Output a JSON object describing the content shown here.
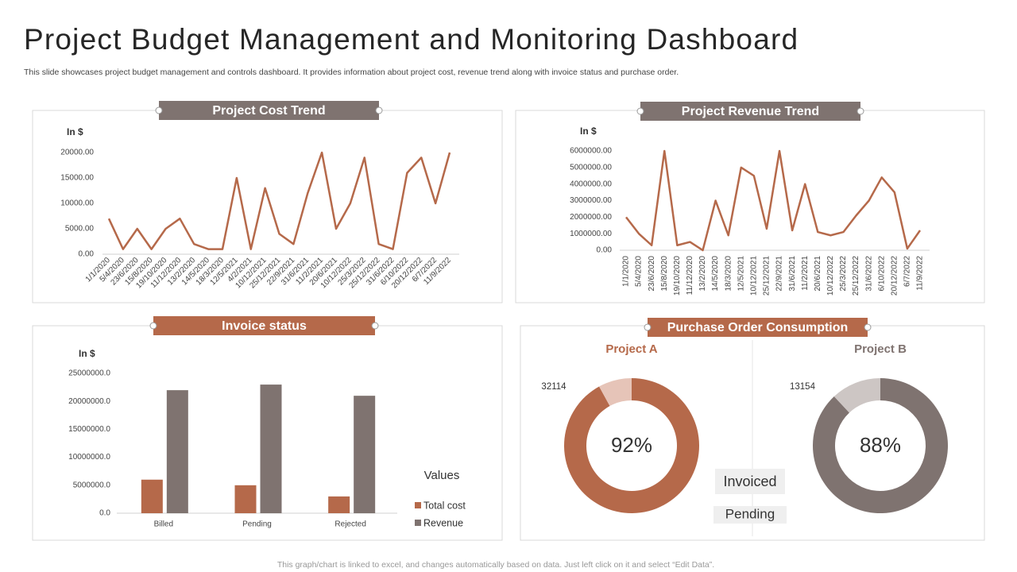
{
  "header": {
    "title": "Project Budget Management and Monitoring Dashboard",
    "subtitle": "This slide showcases project budget management and controls dashboard. It provides information about project cost, revenue trend along with invoice status and purchase order.",
    "footer": "This graph/chart is linked to excel, and changes automatically based on data. Just left click on it and select “Edit Data”."
  },
  "chart_data": [
    {
      "type": "line",
      "title": "Project Cost Trend",
      "y_label": "In $",
      "color": "#b5694a",
      "categories": [
        "1/1/2020",
        "5/4/2020",
        "23/6/2020",
        "15/8/2020",
        "19/10/2020",
        "11/12/2020",
        "13/2/2020",
        "14/5/2020",
        "18/3/2020",
        "12/5/2021",
        "4/2/2021",
        "10/12/2021",
        "25/12/2021",
        "22/9/2021",
        "31/6/2021",
        "11/2/2021",
        "20/6/2021",
        "10/12/2022",
        "25/3/2022",
        "25/12/2022",
        "31/6/2022",
        "6/10/2022",
        "20/12/2022",
        "6/7/2022",
        "11/9/2022"
      ],
      "values": [
        7000,
        1000,
        5000,
        1000,
        5000,
        7000,
        2000,
        1000,
        1000,
        15000,
        1000,
        13000,
        4000,
        2000,
        12000,
        20000,
        5000,
        10000,
        19000,
        2000,
        1000,
        16000,
        19000,
        10000,
        20000
      ],
      "ylim": [
        0,
        20000
      ],
      "yticks": [
        {
          "value": 0,
          "label": "0.00"
        },
        {
          "value": 5000,
          "label": "5000.00"
        },
        {
          "value": 10000,
          "label": "10000.00"
        },
        {
          "value": 15000,
          "label": "15000.00"
        },
        {
          "value": 20000,
          "label": "20000.00"
        }
      ]
    },
    {
      "type": "line",
      "title": "Project Revenue Trend",
      "y_label": "In $",
      "color": "#b5694a",
      "categories": [
        "1/1/2020",
        "5/4/2020",
        "23/6/2020",
        "15/8/2020",
        "19/10/2020",
        "11/12/2020",
        "13/2/2020",
        "14/5/2020",
        "18/3/2020",
        "12/5/2021",
        "10/12/2021",
        "25/12/2021",
        "22/9/2021",
        "31/6/2021",
        "11/2/2021",
        "20/6/2021",
        "10/12/2022",
        "25/3/2022",
        "25/12/2022",
        "31/6/2022",
        "6/10/2022",
        "20/12/2022",
        "6/7/2022",
        "11/9/2022"
      ],
      "values": [
        2000000,
        1000000,
        300000,
        6000000,
        300000,
        500000,
        0,
        3000000,
        900000,
        5000000,
        4500000,
        1300000,
        6000000,
        1200000,
        4000000,
        1100000,
        900000,
        1100000,
        2100000,
        3000000,
        4400000,
        3500000,
        100000,
        1200000
      ],
      "ylim": [
        0,
        6000000
      ],
      "yticks": [
        {
          "value": 0,
          "label": "0.00"
        },
        {
          "value": 1000000,
          "label": "1000000.00"
        },
        {
          "value": 2000000,
          "label": "2000000.00"
        },
        {
          "value": 3000000,
          "label": "3000000.00"
        },
        {
          "value": 4000000,
          "label": "4000000.00"
        },
        {
          "value": 5000000,
          "label": "5000000.00"
        },
        {
          "value": 6000000,
          "label": "6000000.00"
        }
      ]
    },
    {
      "type": "bar",
      "title": "Invoice status",
      "y_label": "In $",
      "legend_title": "Values",
      "categories": [
        "Billed",
        "Pending",
        "Rejected"
      ],
      "series": [
        {
          "name": "Total cost",
          "color": "#b5694a",
          "values": [
            6000000,
            5000000,
            3000000
          ]
        },
        {
          "name": "Revenue",
          "color": "#7f7370",
          "values": [
            22000000,
            23000000,
            21000000
          ]
        }
      ],
      "ylim": [
        0,
        25000000
      ],
      "yticks": [
        {
          "value": 0,
          "label": "0.0"
        },
        {
          "value": 5000000,
          "label": "5000000.0"
        },
        {
          "value": 10000000,
          "label": "10000000.0"
        },
        {
          "value": 15000000,
          "label": "15000000.0"
        },
        {
          "value": 20000000,
          "label": "20000000.0"
        },
        {
          "value": 25000000,
          "label": "25000000.0"
        }
      ]
    },
    {
      "type": "donut",
      "title": "Purchase Order Consumption",
      "categories": [
        "Invoiced",
        "Pending"
      ],
      "series": [
        {
          "name": "Project A",
          "color": "#b5694a",
          "colors": [
            "#b5694a",
            "#e6c4b8"
          ],
          "values": [
            92,
            8
          ],
          "value_labels": [
            "92%",
            null
          ],
          "annotation": "32114"
        },
        {
          "name": "Project B",
          "color": "#7f7370",
          "colors": [
            "#7f7370",
            "#cdc6c4"
          ],
          "values": [
            88,
            12
          ],
          "value_labels": [
            "88%",
            null
          ],
          "annotation": "13154"
        }
      ]
    }
  ]
}
